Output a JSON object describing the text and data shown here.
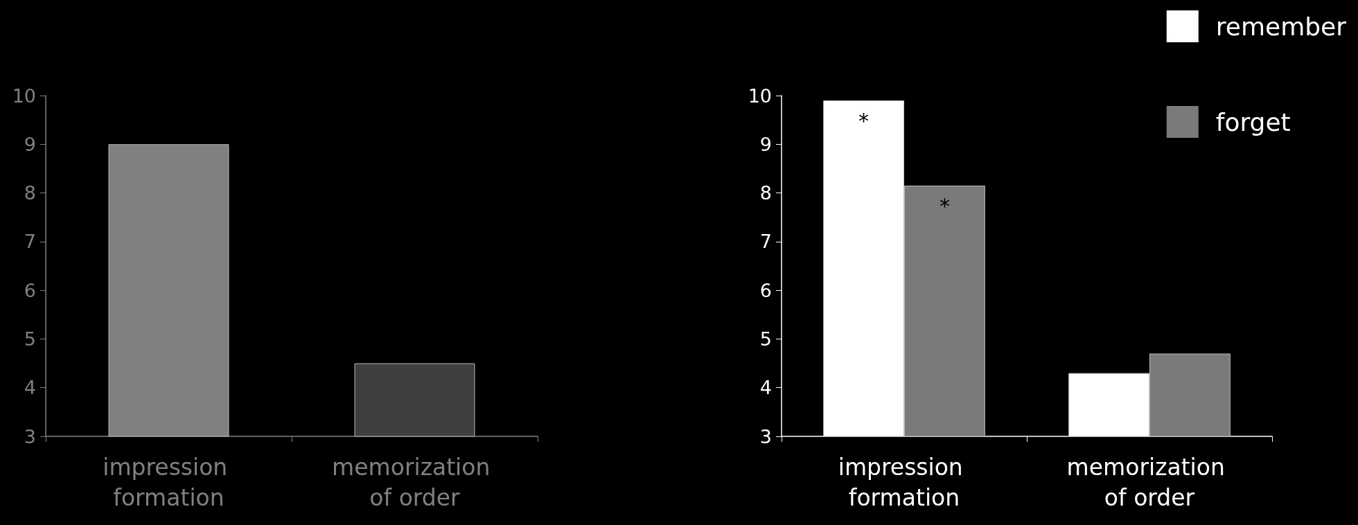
{
  "chart_data": [
    {
      "type": "bar",
      "categories": [
        "impression formation",
        "memorization of order"
      ],
      "values": [
        9.0,
        4.5
      ],
      "colors": [
        "#808080",
        "#3f3f3f"
      ],
      "ylim": [
        3,
        10
      ],
      "yticks": [
        3,
        4,
        5,
        6,
        7,
        8,
        9,
        10
      ],
      "grid": false,
      "legend": false
    },
    {
      "type": "bar",
      "categories": [
        "impression formation",
        "memorization of order"
      ],
      "series": [
        {
          "name": "remember",
          "color": "#ffffff",
          "values": [
            9.9,
            4.3
          ],
          "value_labels": [
            "*",
            null
          ]
        },
        {
          "name": "forget",
          "color": "#7a7a7a",
          "values": [
            8.15,
            4.7
          ],
          "value_labels": [
            "*",
            null
          ]
        }
      ],
      "ylim": [
        3,
        10
      ],
      "yticks": [
        3,
        4,
        5,
        6,
        7,
        8,
        9,
        10
      ],
      "grid": false,
      "legend": "top right"
    }
  ]
}
